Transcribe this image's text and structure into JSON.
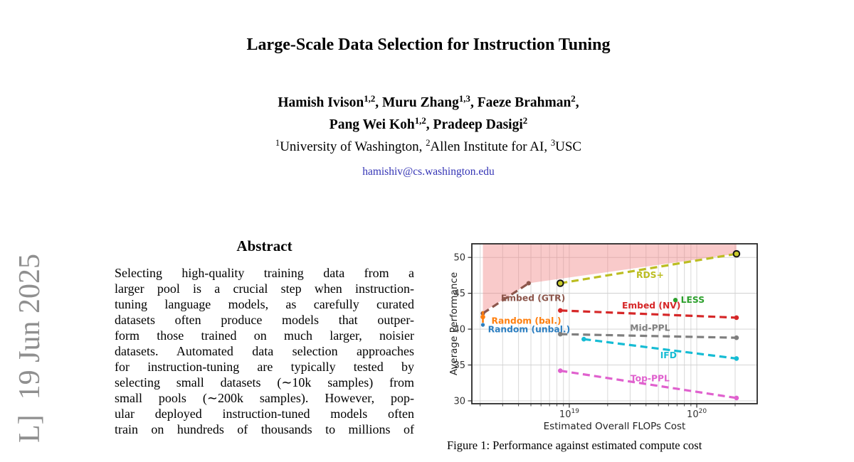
{
  "page": {
    "background": "#ffffff"
  },
  "watermark": {
    "text": "L]  19 Jun 2025",
    "color": "#8f8f8f"
  },
  "title": "Large-Scale Data Selection for Instruction Tuning",
  "authors": {
    "line1": [
      {
        "t": "Hamish Ivison"
      },
      {
        "sup": "1,2"
      },
      {
        "t": ", Muru Zhang"
      },
      {
        "sup": "1,3"
      },
      {
        "t": ", Faeze Brahman"
      },
      {
        "sup": "2"
      },
      {
        "t": ","
      }
    ],
    "line2": [
      {
        "t": "Pang Wei Koh"
      },
      {
        "sup": "1,2"
      },
      {
        "t": ", Pradeep Dasigi"
      },
      {
        "sup": "2"
      }
    ],
    "affiliations": [
      {
        "sup": "1"
      },
      {
        "t": "University of Washington, "
      },
      {
        "sup": "2"
      },
      {
        "t": "Allen Institute for AI, "
      },
      {
        "sup": "3"
      },
      {
        "t": "USC"
      }
    ],
    "email": "hamishiv@cs.washington.edu",
    "email_color": "#3434b5"
  },
  "abstract": {
    "heading": "Abstract",
    "lines": [
      "Selecting high-quality training data from a",
      "larger pool is a crucial step when instruction-",
      "tuning language models, as carefully curated",
      "datasets often produce models that outper-",
      "form those trained on much larger, noisier",
      "datasets. Automated data selection approaches",
      "for instruction-tuning are typically tested by",
      "selecting small datasets (∼10k samples) from",
      "small pools (∼200k samples). However, pop-",
      "ular deployed instruction-tuned models often",
      "train on hundreds of thousands to millions of"
    ]
  },
  "figure": {
    "caption": "Figure 1: Performance against estimated compute cost"
  },
  "chart_data": {
    "type": "line",
    "title": "",
    "xlabel": "Estimated Overall FLOPs Cost",
    "ylabel": "Average Performance",
    "x_scale": "log",
    "xlim": [
      1.72e+18,
      2.98e+20
    ],
    "ylim": [
      29.6,
      51.9
    ],
    "yticks": [
      30,
      35,
      40,
      45,
      50
    ],
    "xticks": [
      {
        "value": 1e+19,
        "base": "10",
        "exp": "19"
      },
      {
        "value": 1e+20,
        "base": "10",
        "exp": "20"
      }
    ],
    "grid": true,
    "legend_position": "inline-labels",
    "shaded_region": {
      "name": "pareto-frontier-region",
      "color": "#f08080",
      "opacity": 0.42,
      "points": [
        [
          2.1e+18,
          42.35
        ],
        [
          4.8e+18,
          46.4
        ],
        [
          2.05e+20,
          50.5
        ],
        [
          2.05e+20,
          51.9
        ],
        [
          2.1e+18,
          51.9
        ]
      ]
    },
    "series": [
      {
        "name": "Embed (GTR)",
        "color": "#8c564b",
        "line": "dashed",
        "x": [
          2.1e+18,
          4.8e+18
        ],
        "y": [
          42.2,
          46.4
        ],
        "marker": {
          "r": 3.1
        },
        "label": {
          "x": 5.2e+18,
          "y": 44.3,
          "anchor": "middle"
        }
      },
      {
        "name": "RDS+",
        "color": "#bcbd22",
        "line": "dashed",
        "x": [
          8.5e+18,
          2.05e+20
        ],
        "y": [
          46.4,
          50.5
        ],
        "marker": {
          "r": 4.3,
          "fill": "#c9ca2b",
          "stroke": "#141414",
          "stroke_width": 2
        },
        "label": {
          "x": 4.3e+19,
          "y": 47.55,
          "anchor": "middle"
        }
      },
      {
        "name": "Embed (NV)",
        "color": "#d62728",
        "line": "dashed",
        "x": [
          8.5e+18,
          2.05e+20
        ],
        "y": [
          42.6,
          41.6
        ],
        "marker": {
          "r": 3.3
        },
        "label": {
          "x": 4.4e+19,
          "y": 43.3,
          "anchor": "middle"
        }
      },
      {
        "name": "Mid-PPL",
        "color": "#7f7f7f",
        "line": "dashed",
        "x": [
          8.5e+18,
          2.05e+20
        ],
        "y": [
          39.3,
          38.8
        ],
        "marker": {
          "r": 3.3
        },
        "label": {
          "x": 4.3e+19,
          "y": 40.15,
          "anchor": "middle"
        }
      },
      {
        "name": "IFD",
        "color": "#16bcd4",
        "line": "dashed",
        "x": [
          1.3e+19,
          2.05e+20
        ],
        "y": [
          38.6,
          35.9
        ],
        "marker": {
          "r": 3.3
        },
        "label": {
          "x": 6e+19,
          "y": 36.35,
          "anchor": "middle"
        }
      },
      {
        "name": "Top-PPL",
        "color": "#e061ce",
        "line": "dashed",
        "x": [
          8.5e+18,
          2.05e+20
        ],
        "y": [
          34.2,
          30.4
        ],
        "marker": {
          "r": 3.3
        },
        "label": {
          "x": 4.3e+19,
          "y": 33.1,
          "anchor": "middle"
        }
      },
      {
        "name": "Random (bal.)",
        "color": "#ff7f0e",
        "x": [
          2.1e+18
        ],
        "y": [
          41.7
        ],
        "yerr": 0.8,
        "marker": {
          "r": 3.3
        },
        "label": {
          "x": 2.45e+18,
          "y": 41.15,
          "anchor": "start"
        }
      },
      {
        "name": "Random (unbal.)",
        "color": "#2d7fc1",
        "x": [
          2.1e+18
        ],
        "y": [
          40.6
        ],
        "yerr": 0.25,
        "marker": {
          "r": 2.7
        },
        "label": {
          "x": 2.3e+18,
          "y": 39.95,
          "anchor": "start"
        }
      },
      {
        "name": "LESS",
        "color": "#2ca02c",
        "x": [
          6.8e+19
        ],
        "y": [
          44.05
        ],
        "marker": {
          "r": 3.2
        },
        "label": {
          "x": 7.5e+19,
          "y": 44.05,
          "anchor": "start"
        }
      }
    ]
  }
}
